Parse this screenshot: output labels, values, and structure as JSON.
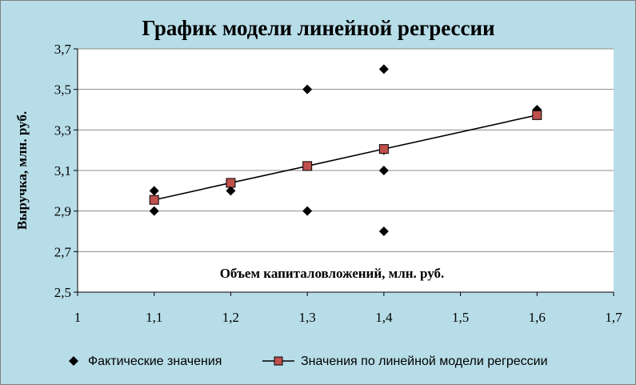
{
  "chart_data": {
    "type": "scatter",
    "title": "График модели линейной регрессии",
    "xlabel": "Объем капиталовложений, млн. руб.",
    "ylabel": "Выручка, млн. руб.",
    "xlim": [
      1,
      1.7
    ],
    "ylim": [
      2.5,
      3.7
    ],
    "x_ticks": [
      "1",
      "1,1",
      "1,2",
      "1,3",
      "1,4",
      "1,5",
      "1,6",
      "1,7"
    ],
    "y_ticks": [
      "2,5",
      "2,7",
      "2,9",
      "3,1",
      "3,3",
      "3,5",
      "3,7"
    ],
    "x_tick_values": [
      1,
      1.1,
      1.2,
      1.3,
      1.4,
      1.5,
      1.6,
      1.7
    ],
    "y_tick_values": [
      2.5,
      2.7,
      2.9,
      3.1,
      3.3,
      3.5,
      3.7
    ],
    "grid": "horizontal",
    "legend_position": "bottom",
    "series": [
      {
        "name": "Фактические значения",
        "marker": "diamond",
        "color": "#000000",
        "points": [
          {
            "x": 1.1,
            "y": 3.0
          },
          {
            "x": 1.1,
            "y": 2.9
          },
          {
            "x": 1.2,
            "y": 3.0
          },
          {
            "x": 1.3,
            "y": 3.5
          },
          {
            "x": 1.3,
            "y": 2.9
          },
          {
            "x": 1.4,
            "y": 3.6
          },
          {
            "x": 1.4,
            "y": 3.2
          },
          {
            "x": 1.4,
            "y": 3.1
          },
          {
            "x": 1.4,
            "y": 2.8
          },
          {
            "x": 1.6,
            "y": 3.4
          }
        ]
      },
      {
        "name": "Значения по линейной модели регрессии",
        "marker": "square",
        "color": "#c0504d",
        "line_color": "#000000",
        "points": [
          {
            "x": 1.1,
            "y": 2.955
          },
          {
            "x": 1.2,
            "y": 3.039
          },
          {
            "x": 1.3,
            "y": 3.122
          },
          {
            "x": 1.4,
            "y": 3.206
          },
          {
            "x": 1.6,
            "y": 3.373
          }
        ]
      }
    ]
  },
  "colors": {
    "background": "#b7dde8",
    "plot_area": "#ffffff",
    "gridline": "#8c8c8c"
  }
}
